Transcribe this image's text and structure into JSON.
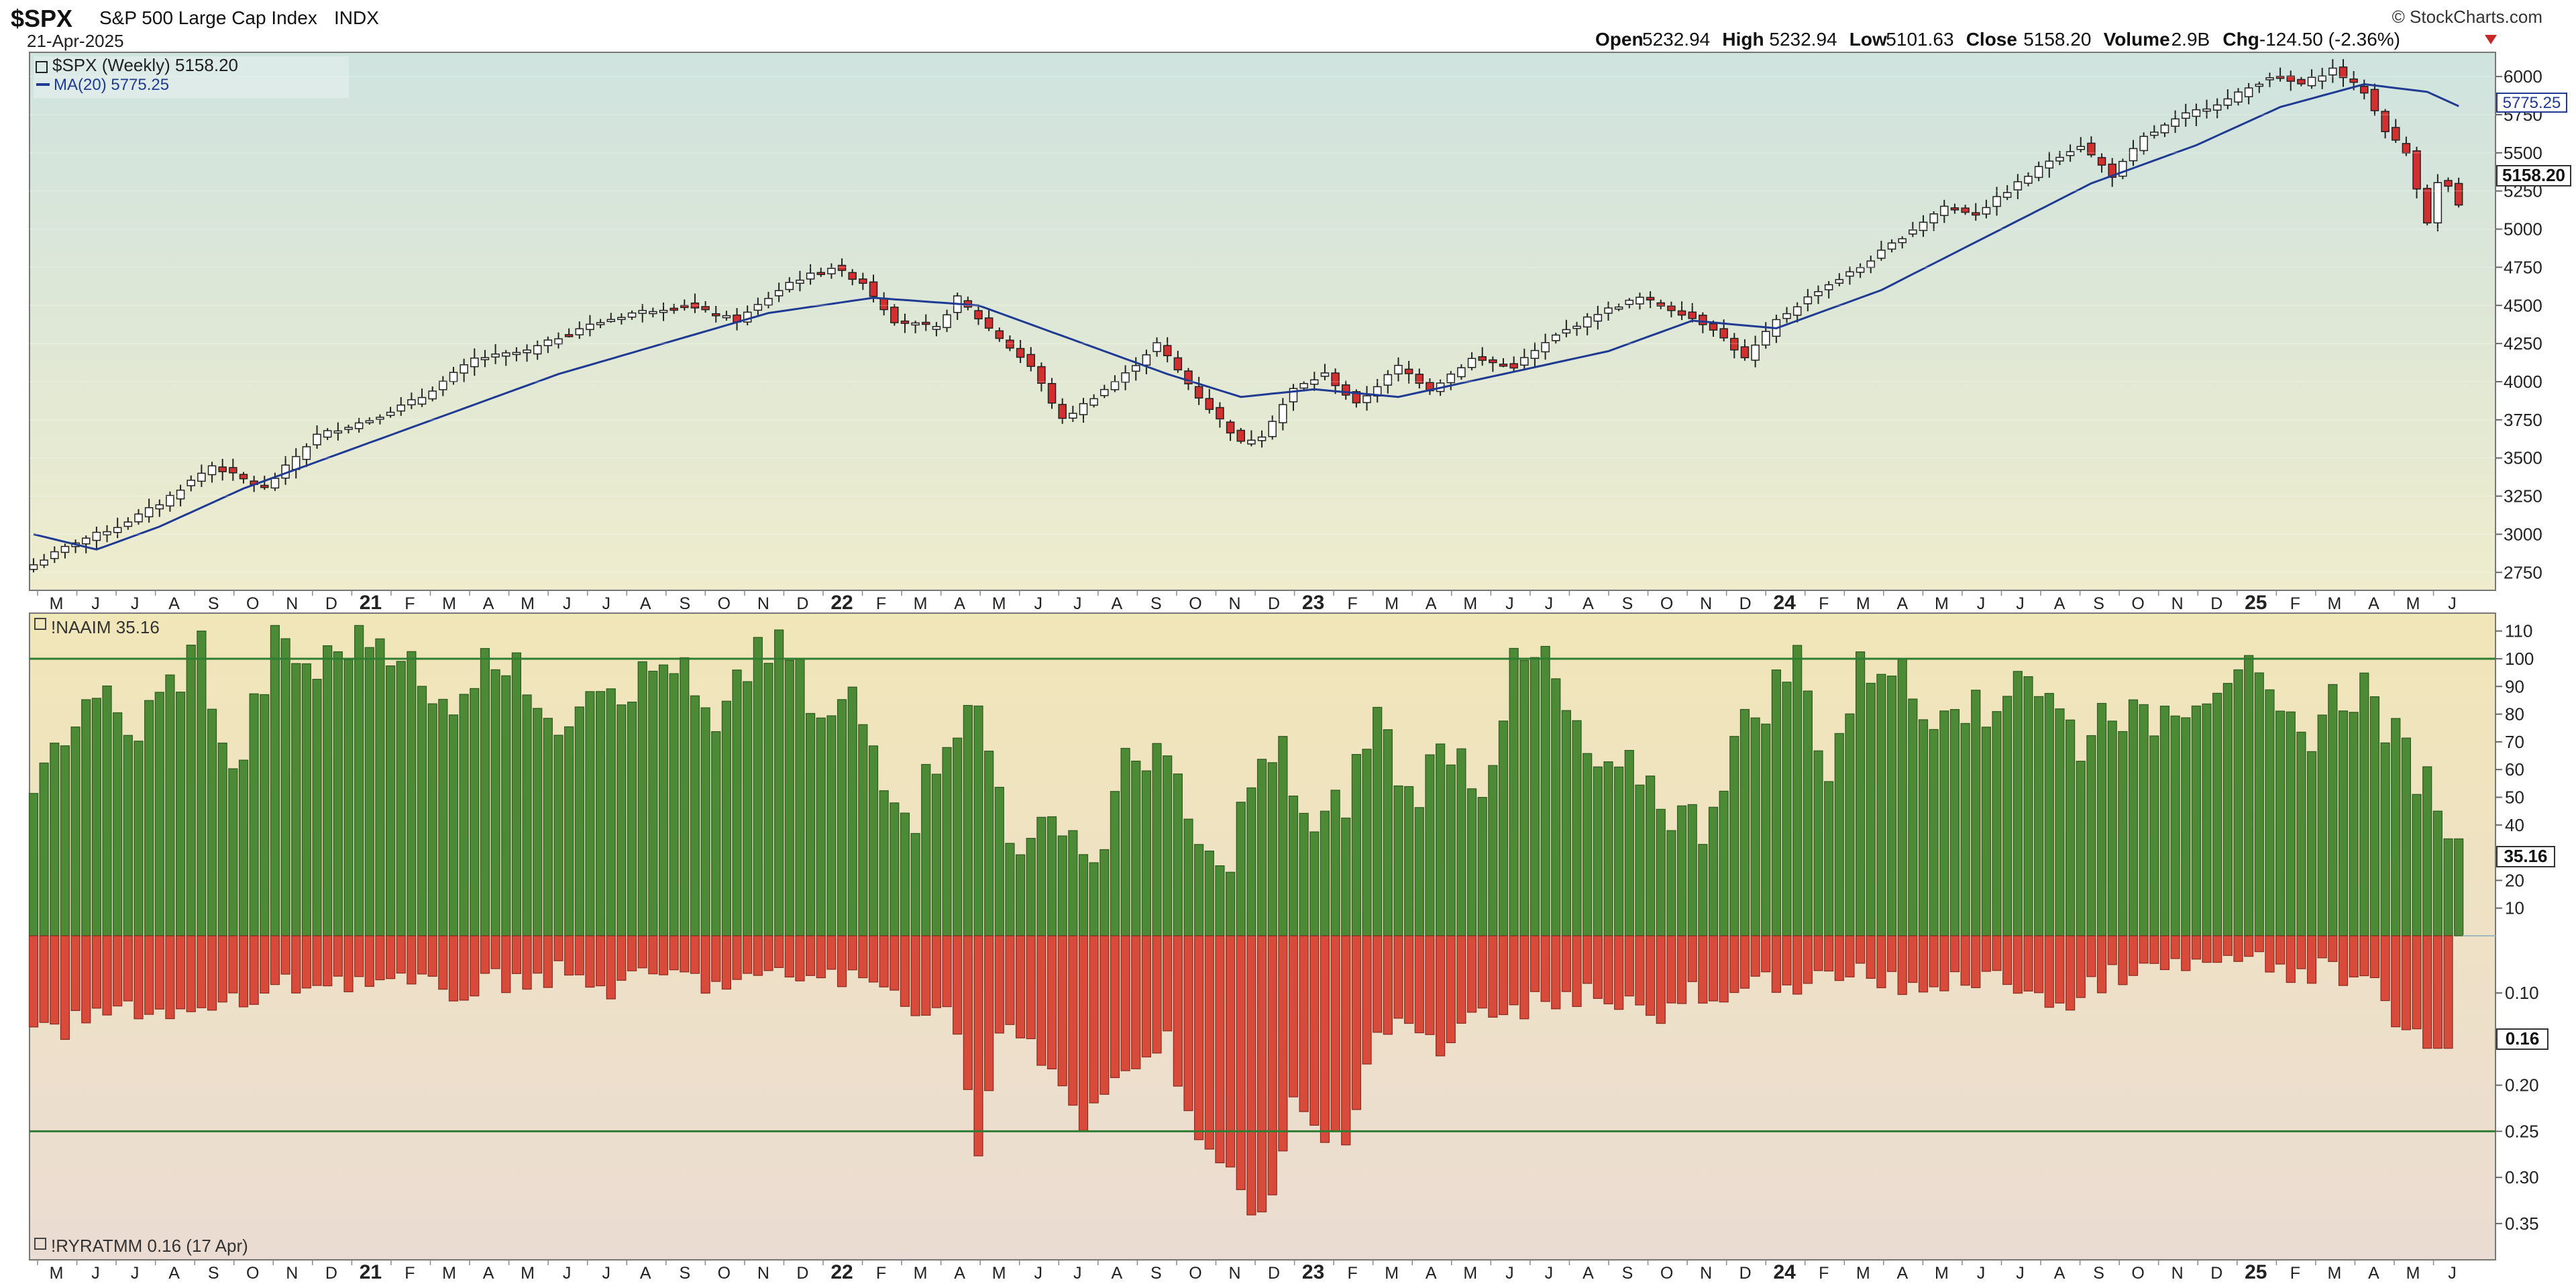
{
  "header": {
    "symbol": "$SPX",
    "name": "S&P 500 Large Cap Index",
    "exchange": "INDX",
    "date": "21-Apr-2025",
    "watermark": "© StockCharts.com",
    "ohlc": [
      {
        "label": "Open",
        "value": "5232.94"
      },
      {
        "label": "High",
        "value": "5232.94"
      },
      {
        "label": "Low",
        "value": "5101.63"
      },
      {
        "label": "Close",
        "value": "5158.20"
      },
      {
        "label": "Volume",
        "value": "2.9B"
      },
      {
        "label": "Chg",
        "value": "-124.50 (-2.36%)"
      }
    ],
    "chg_direction": "down"
  },
  "colors": {
    "up_candle": "#ffffff",
    "down_candle": "#d32f2f",
    "ma_line": "#1f3a93",
    "naaim_bar": "#4c8a35",
    "ryratmm_bar": "#d84a3a",
    "threshold_line": "#2e7d32"
  },
  "chart_data": [
    {
      "type": "candlestick",
      "legend": [
        "$SPX (Weekly) 5158.20",
        "MA(20) 5775.25"
      ],
      "price_badges": [
        "5775.25",
        "5158.20"
      ],
      "y_ticks": [
        2750,
        3000,
        3250,
        3500,
        3750,
        4000,
        4250,
        4500,
        4750,
        5000,
        5250,
        5500,
        5750,
        6000
      ],
      "ylim": [
        2650,
        6150
      ],
      "x_axis_labels": [
        "M",
        "J",
        "J",
        "A",
        "S",
        "O",
        "N",
        "D",
        "21",
        "F",
        "M",
        "A",
        "M",
        "J",
        "J",
        "A",
        "S",
        "O",
        "N",
        "D",
        "22",
        "F",
        "M",
        "A",
        "M",
        "J",
        "J",
        "A",
        "S",
        "O",
        "N",
        "D",
        "23",
        "F",
        "M",
        "A",
        "M",
        "J",
        "J",
        "A",
        "S",
        "O",
        "N",
        "D",
        "24",
        "F",
        "M",
        "A",
        "M",
        "J",
        "J",
        "A",
        "S",
        "O",
        "N",
        "D",
        "25",
        "F",
        "M",
        "A",
        "M",
        "J"
      ],
      "close_anchors": [
        {
          "week": 0,
          "close": 2800
        },
        {
          "week": 4,
          "close": 2950
        },
        {
          "week": 8,
          "close": 3050
        },
        {
          "week": 12,
          "close": 3200
        },
        {
          "week": 17,
          "close": 3450
        },
        {
          "week": 22,
          "close": 3300
        },
        {
          "week": 27,
          "close": 3650
        },
        {
          "week": 32,
          "close": 3750
        },
        {
          "week": 37,
          "close": 3900
        },
        {
          "week": 42,
          "close": 4150
        },
        {
          "week": 47,
          "close": 4200
        },
        {
          "week": 52,
          "close": 4350
        },
        {
          "week": 57,
          "close": 4450
        },
        {
          "week": 62,
          "close": 4500
        },
        {
          "week": 67,
          "close": 4400
        },
        {
          "week": 72,
          "close": 4650
        },
        {
          "week": 76,
          "close": 4750
        },
        {
          "week": 79,
          "close": 4650
        },
        {
          "week": 82,
          "close": 4400
        },
        {
          "week": 86,
          "close": 4350
        },
        {
          "week": 88,
          "close": 4550
        },
        {
          "week": 91,
          "close": 4350
        },
        {
          "week": 95,
          "close": 4100
        },
        {
          "week": 98,
          "close": 3750
        },
        {
          "week": 101,
          "close": 3900
        },
        {
          "week": 104,
          "close": 4050
        },
        {
          "week": 107,
          "close": 4250
        },
        {
          "week": 111,
          "close": 3900
        },
        {
          "week": 115,
          "close": 3600
        },
        {
          "week": 117,
          "close": 3650
        },
        {
          "week": 120,
          "close": 3950
        },
        {
          "week": 123,
          "close": 4050
        },
        {
          "week": 126,
          "close": 3850
        },
        {
          "week": 130,
          "close": 4100
        },
        {
          "week": 133,
          "close": 3950
        },
        {
          "week": 137,
          "close": 4150
        },
        {
          "week": 141,
          "close": 4100
        },
        {
          "week": 145,
          "close": 4300
        },
        {
          "week": 149,
          "close": 4450
        },
        {
          "week": 153,
          "close": 4550
        },
        {
          "week": 157,
          "close": 4450
        },
        {
          "week": 160,
          "close": 4350
        },
        {
          "week": 163,
          "close": 4150
        },
        {
          "week": 166,
          "close": 4400
        },
        {
          "week": 170,
          "close": 4600
        },
        {
          "week": 174,
          "close": 4750
        },
        {
          "week": 178,
          "close": 4950
        },
        {
          "week": 182,
          "close": 5150
        },
        {
          "week": 185,
          "close": 5100
        },
        {
          "week": 188,
          "close": 5250
        },
        {
          "week": 192,
          "close": 5450
        },
        {
          "week": 195,
          "close": 5550
        },
        {
          "week": 198,
          "close": 5350
        },
        {
          "week": 201,
          "close": 5600
        },
        {
          "week": 205,
          "close": 5750
        },
        {
          "week": 209,
          "close": 5850
        },
        {
          "week": 213,
          "close": 6000
        },
        {
          "week": 216,
          "close": 5950
        },
        {
          "week": 219,
          "close": 6050
        },
        {
          "week": 222,
          "close": 5900
        },
        {
          "week": 224,
          "close": 5650
        },
        {
          "week": 226,
          "close": 5500
        },
        {
          "week": 228,
          "close": 5050
        },
        {
          "week": 229,
          "close": 5300
        },
        {
          "week": 230,
          "close": 5280
        },
        {
          "week": 231,
          "close": 5158
        }
      ],
      "ma_anchors": [
        {
          "week": 0,
          "ma": 3000
        },
        {
          "week": 6,
          "ma": 2900
        },
        {
          "week": 12,
          "ma": 3050
        },
        {
          "week": 20,
          "ma": 3300
        },
        {
          "week": 30,
          "ma": 3550
        },
        {
          "week": 40,
          "ma": 3800
        },
        {
          "week": 50,
          "ma": 4050
        },
        {
          "week": 60,
          "ma": 4250
        },
        {
          "week": 70,
          "ma": 4450
        },
        {
          "week": 80,
          "ma": 4550
        },
        {
          "week": 90,
          "ma": 4500
        },
        {
          "week": 100,
          "ma": 4250
        },
        {
          "week": 108,
          "ma": 4050
        },
        {
          "week": 115,
          "ma": 3900
        },
        {
          "week": 122,
          "ma": 3950
        },
        {
          "week": 130,
          "ma": 3900
        },
        {
          "week": 140,
          "ma": 4050
        },
        {
          "week": 150,
          "ma": 4200
        },
        {
          "week": 158,
          "ma": 4400
        },
        {
          "week": 166,
          "ma": 4350
        },
        {
          "week": 176,
          "ma": 4600
        },
        {
          "week": 186,
          "ma": 4950
        },
        {
          "week": 196,
          "ma": 5300
        },
        {
          "week": 206,
          "ma": 5550
        },
        {
          "week": 214,
          "ma": 5800
        },
        {
          "week": 222,
          "ma": 5950
        },
        {
          "week": 228,
          "ma": 5900
        },
        {
          "week": 232,
          "ma": 5775
        }
      ]
    },
    {
      "type": "bar",
      "legend": "!NAAIM 35.16",
      "badge": "35.16",
      "y_ticks": [
        10,
        20,
        30,
        40,
        50,
        60,
        70,
        80,
        90,
        100,
        110
      ],
      "ylim": [
        0,
        115
      ],
      "reference_line": 100,
      "anchors": [
        {
          "week": 0,
          "value": 45
        },
        {
          "week": 3,
          "value": 75
        },
        {
          "week": 6,
          "value": 90
        },
        {
          "week": 9,
          "value": 70
        },
        {
          "week": 12,
          "value": 85
        },
        {
          "week": 16,
          "value": 105
        },
        {
          "week": 19,
          "value": 55
        },
        {
          "week": 23,
          "value": 105
        },
        {
          "week": 27,
          "value": 95
        },
        {
          "week": 31,
          "value": 110
        },
        {
          "week": 35,
          "value": 105
        },
        {
          "week": 38,
          "value": 80
        },
        {
          "week": 42,
          "value": 95
        },
        {
          "week": 46,
          "value": 105
        },
        {
          "week": 49,
          "value": 70
        },
        {
          "week": 53,
          "value": 95
        },
        {
          "week": 57,
          "value": 90
        },
        {
          "week": 61,
          "value": 100
        },
        {
          "week": 65,
          "value": 70
        },
        {
          "week": 69,
          "value": 105
        },
        {
          "week": 72,
          "value": 100
        },
        {
          "week": 75,
          "value": 75
        },
        {
          "week": 78,
          "value": 85
        },
        {
          "week": 81,
          "value": 60
        },
        {
          "week": 84,
          "value": 45
        },
        {
          "week": 87,
          "value": 75
        },
        {
          "week": 90,
          "value": 80
        },
        {
          "week": 93,
          "value": 40
        },
        {
          "week": 95,
          "value": 30
        },
        {
          "week": 98,
          "value": 45
        },
        {
          "week": 101,
          "value": 25
        },
        {
          "week": 104,
          "value": 60
        },
        {
          "week": 107,
          "value": 70
        },
        {
          "week": 110,
          "value": 40
        },
        {
          "week": 113,
          "value": 20
        },
        {
          "week": 116,
          "value": 55
        },
        {
          "week": 119,
          "value": 65
        },
        {
          "week": 122,
          "value": 35
        },
        {
          "week": 125,
          "value": 50
        },
        {
          "week": 128,
          "value": 80
        },
        {
          "week": 131,
          "value": 50
        },
        {
          "week": 135,
          "value": 70
        },
        {
          "week": 138,
          "value": 55
        },
        {
          "week": 141,
          "value": 95
        },
        {
          "week": 144,
          "value": 100
        },
        {
          "week": 147,
          "value": 70
        },
        {
          "week": 150,
          "value": 55
        },
        {
          "week": 153,
          "value": 60
        },
        {
          "week": 156,
          "value": 45
        },
        {
          "week": 159,
          "value": 40
        },
        {
          "week": 162,
          "value": 70
        },
        {
          "week": 165,
          "value": 85
        },
        {
          "week": 168,
          "value": 100
        },
        {
          "week": 171,
          "value": 60
        },
        {
          "week": 174,
          "value": 95
        },
        {
          "week": 177,
          "value": 100
        },
        {
          "week": 180,
          "value": 80
        },
        {
          "week": 183,
          "value": 90
        },
        {
          "week": 186,
          "value": 75
        },
        {
          "week": 189,
          "value": 100
        },
        {
          "week": 192,
          "value": 85
        },
        {
          "week": 195,
          "value": 70
        },
        {
          "week": 198,
          "value": 85
        },
        {
          "week": 201,
          "value": 75
        },
        {
          "week": 204,
          "value": 85
        },
        {
          "week": 207,
          "value": 90
        },
        {
          "week": 210,
          "value": 100
        },
        {
          "week": 213,
          "value": 80
        },
        {
          "week": 216,
          "value": 70
        },
        {
          "week": 219,
          "value": 85
        },
        {
          "week": 222,
          "value": 90
        },
        {
          "week": 225,
          "value": 70
        },
        {
          "week": 228,
          "value": 55
        },
        {
          "week": 230,
          "value": 35
        },
        {
          "week": 231,
          "value": 35
        }
      ]
    },
    {
      "type": "bar",
      "legend": "!RYRATMM 0.16 (17 Apr)",
      "badge": "0.16",
      "y_ticks": [
        0.1,
        0.15,
        0.2,
        0.25,
        0.3,
        0.35
      ],
      "ylim": [
        0.038,
        0.385
      ],
      "reference_line": 0.25,
      "anchors": [
        {
          "week": 0,
          "value": 0.15
        },
        {
          "week": 5,
          "value": 0.13
        },
        {
          "week": 10,
          "value": 0.115
        },
        {
          "week": 15,
          "value": 0.125
        },
        {
          "week": 20,
          "value": 0.11
        },
        {
          "week": 25,
          "value": 0.09
        },
        {
          "week": 30,
          "value": 0.085
        },
        {
          "week": 35,
          "value": 0.09
        },
        {
          "week": 40,
          "value": 0.1
        },
        {
          "week": 45,
          "value": 0.085
        },
        {
          "week": 50,
          "value": 0.08
        },
        {
          "week": 55,
          "value": 0.095
        },
        {
          "week": 60,
          "value": 0.08
        },
        {
          "week": 65,
          "value": 0.09
        },
        {
          "week": 70,
          "value": 0.085
        },
        {
          "week": 75,
          "value": 0.08
        },
        {
          "week": 80,
          "value": 0.09
        },
        {
          "week": 84,
          "value": 0.11
        },
        {
          "week": 88,
          "value": 0.13
        },
        {
          "week": 90,
          "value": 0.28
        },
        {
          "week": 92,
          "value": 0.14
        },
        {
          "week": 95,
          "value": 0.16
        },
        {
          "week": 98,
          "value": 0.2
        },
        {
          "week": 100,
          "value": 0.24
        },
        {
          "week": 102,
          "value": 0.22
        },
        {
          "week": 105,
          "value": 0.17
        },
        {
          "week": 108,
          "value": 0.15
        },
        {
          "week": 111,
          "value": 0.26
        },
        {
          "week": 114,
          "value": 0.3
        },
        {
          "week": 116,
          "value": 0.34
        },
        {
          "week": 118,
          "value": 0.33
        },
        {
          "week": 120,
          "value": 0.22
        },
        {
          "week": 123,
          "value": 0.26
        },
        {
          "week": 125,
          "value": 0.25
        },
        {
          "week": 128,
          "value": 0.14
        },
        {
          "week": 131,
          "value": 0.13
        },
        {
          "week": 134,
          "value": 0.17
        },
        {
          "week": 137,
          "value": 0.12
        },
        {
          "week": 140,
          "value": 0.13
        },
        {
          "week": 143,
          "value": 0.11
        },
        {
          "week": 146,
          "value": 0.1
        },
        {
          "week": 149,
          "value": 0.1
        },
        {
          "week": 152,
          "value": 0.11
        },
        {
          "week": 155,
          "value": 0.13
        },
        {
          "week": 158,
          "value": 0.1
        },
        {
          "week": 161,
          "value": 0.12
        },
        {
          "week": 164,
          "value": 0.09
        },
        {
          "week": 167,
          "value": 0.085
        },
        {
          "week": 170,
          "value": 0.09
        },
        {
          "week": 173,
          "value": 0.08
        },
        {
          "week": 176,
          "value": 0.085
        },
        {
          "week": 179,
          "value": 0.1
        },
        {
          "week": 182,
          "value": 0.085
        },
        {
          "week": 185,
          "value": 0.09
        },
        {
          "week": 188,
          "value": 0.085
        },
        {
          "week": 191,
          "value": 0.1
        },
        {
          "week": 194,
          "value": 0.12
        },
        {
          "week": 197,
          "value": 0.085
        },
        {
          "week": 200,
          "value": 0.08
        },
        {
          "week": 203,
          "value": 0.075
        },
        {
          "week": 206,
          "value": 0.07
        },
        {
          "week": 209,
          "value": 0.065
        },
        {
          "week": 212,
          "value": 0.07
        },
        {
          "week": 215,
          "value": 0.08
        },
        {
          "week": 218,
          "value": 0.075
        },
        {
          "week": 221,
          "value": 0.09
        },
        {
          "week": 224,
          "value": 0.1
        },
        {
          "week": 226,
          "value": 0.145
        },
        {
          "week": 228,
          "value": 0.16
        },
        {
          "week": 230,
          "value": 0.16
        }
      ]
    }
  ]
}
